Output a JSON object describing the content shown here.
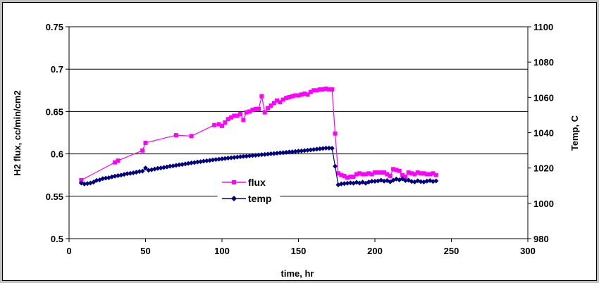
{
  "chart_data": {
    "type": "line",
    "xlabel": "time, hr",
    "ylabel_left": "H2 flux, cc/min/cm2",
    "ylabel_right": "Temp, C",
    "xlim": [
      0,
      300
    ],
    "xticks": [
      0,
      50,
      100,
      150,
      200,
      250,
      300
    ],
    "ylim_left": [
      0.5,
      0.75
    ],
    "yticks_left": [
      "0.5",
      "0.55",
      "0.6",
      "0.65",
      "0.7",
      "0.75"
    ],
    "ylim_right": [
      980,
      1100
    ],
    "yticks_right": [
      "980",
      "1000",
      "1020",
      "1040",
      "1060",
      "1080",
      "1100"
    ],
    "grid": "horizontal",
    "legend_position": "center-left",
    "series": [
      {
        "name": "flux",
        "axis": "left",
        "color": "#ff00ff",
        "marker": "square",
        "points": [
          [
            8,
            0.569
          ],
          [
            30,
            0.59
          ],
          [
            32,
            0.592
          ],
          [
            48,
            0.604
          ],
          [
            50,
            0.613
          ],
          [
            70,
            0.622
          ],
          [
            80,
            0.621
          ],
          [
            95,
            0.634
          ],
          [
            98,
            0.635
          ],
          [
            100,
            0.633
          ],
          [
            102,
            0.637
          ],
          [
            104,
            0.641
          ],
          [
            106,
            0.643
          ],
          [
            108,
            0.645
          ],
          [
            110,
            0.645
          ],
          [
            112,
            0.647
          ],
          [
            114,
            0.64
          ],
          [
            116,
            0.649
          ],
          [
            118,
            0.65
          ],
          [
            120,
            0.652
          ],
          [
            122,
            0.653
          ],
          [
            124,
            0.653
          ],
          [
            126,
            0.668
          ],
          [
            128,
            0.649
          ],
          [
            130,
            0.654
          ],
          [
            132,
            0.657
          ],
          [
            134,
            0.66
          ],
          [
            136,
            0.663
          ],
          [
            138,
            0.661
          ],
          [
            140,
            0.664
          ],
          [
            142,
            0.666
          ],
          [
            144,
            0.667
          ],
          [
            146,
            0.668
          ],
          [
            148,
            0.669
          ],
          [
            150,
            0.669
          ],
          [
            152,
            0.67
          ],
          [
            154,
            0.671
          ],
          [
            156,
            0.67
          ],
          [
            158,
            0.673
          ],
          [
            160,
            0.675
          ],
          [
            162,
            0.675
          ],
          [
            164,
            0.676
          ],
          [
            166,
            0.676
          ],
          [
            168,
            0.677
          ],
          [
            170,
            0.676
          ],
          [
            172,
            0.676
          ],
          [
            174,
            0.624
          ],
          [
            176,
            0.577
          ],
          [
            178,
            0.575
          ],
          [
            180,
            0.574
          ],
          [
            182,
            0.572
          ],
          [
            184,
            0.573
          ],
          [
            186,
            0.573
          ],
          [
            188,
            0.576
          ],
          [
            190,
            0.577
          ],
          [
            192,
            0.576
          ],
          [
            194,
            0.576
          ],
          [
            196,
            0.577
          ],
          [
            198,
            0.576
          ],
          [
            200,
            0.578
          ],
          [
            202,
            0.578
          ],
          [
            204,
            0.578
          ],
          [
            206,
            0.578
          ],
          [
            208,
            0.576
          ],
          [
            210,
            0.574
          ],
          [
            212,
            0.582
          ],
          [
            214,
            0.581
          ],
          [
            216,
            0.58
          ],
          [
            218,
            0.575
          ],
          [
            220,
            0.573
          ],
          [
            222,
            0.578
          ],
          [
            224,
            0.577
          ],
          [
            226,
            0.576
          ],
          [
            228,
            0.578
          ],
          [
            230,
            0.577
          ],
          [
            232,
            0.577
          ],
          [
            234,
            0.576
          ],
          [
            236,
            0.576
          ],
          [
            238,
            0.577
          ],
          [
            240,
            0.575
          ]
        ]
      },
      {
        "name": "temp",
        "axis": "right",
        "color": "#000080",
        "marker": "diamond",
        "points": [
          [
            8,
            1011.5
          ],
          [
            10,
            1011
          ],
          [
            12,
            1011.2
          ],
          [
            14,
            1011.5
          ],
          [
            16,
            1012
          ],
          [
            18,
            1013
          ],
          [
            20,
            1013.3
          ],
          [
            22,
            1014
          ],
          [
            24,
            1014.3
          ],
          [
            26,
            1014.5
          ],
          [
            28,
            1015
          ],
          [
            30,
            1015.4
          ],
          [
            32,
            1015.7
          ],
          [
            34,
            1016
          ],
          [
            36,
            1016.4
          ],
          [
            38,
            1016.8
          ],
          [
            40,
            1017
          ],
          [
            42,
            1017.3
          ],
          [
            44,
            1017.6
          ],
          [
            46,
            1018
          ],
          [
            48,
            1018.2
          ],
          [
            50,
            1020
          ],
          [
            52,
            1018.7
          ],
          [
            54,
            1019
          ],
          [
            56,
            1019.4
          ],
          [
            58,
            1019.8
          ],
          [
            60,
            1020
          ],
          [
            62,
            1020.3
          ],
          [
            64,
            1020.6
          ],
          [
            66,
            1021
          ],
          [
            68,
            1021.2
          ],
          [
            70,
            1021.5
          ],
          [
            72,
            1021.8
          ],
          [
            74,
            1022
          ],
          [
            76,
            1022.3
          ],
          [
            78,
            1022.6
          ],
          [
            80,
            1022.9
          ],
          [
            82,
            1023.1
          ],
          [
            84,
            1023.4
          ],
          [
            86,
            1023.6
          ],
          [
            88,
            1023.9
          ],
          [
            90,
            1024.1
          ],
          [
            92,
            1024.3
          ],
          [
            94,
            1024.6
          ],
          [
            96,
            1024.8
          ],
          [
            98,
            1025
          ],
          [
            100,
            1025.2
          ],
          [
            102,
            1025.4
          ],
          [
            104,
            1025.6
          ],
          [
            106,
            1025.8
          ],
          [
            108,
            1026
          ],
          [
            110,
            1026.2
          ],
          [
            112,
            1026.4
          ],
          [
            114,
            1026.6
          ],
          [
            116,
            1026.7
          ],
          [
            118,
            1026.9
          ],
          [
            120,
            1027.1
          ],
          [
            122,
            1027.2
          ],
          [
            124,
            1027.4
          ],
          [
            126,
            1027.6
          ],
          [
            128,
            1027.7
          ],
          [
            130,
            1027.9
          ],
          [
            132,
            1028.1
          ],
          [
            134,
            1028.2
          ],
          [
            136,
            1028.4
          ],
          [
            138,
            1028.6
          ],
          [
            140,
            1028.7
          ],
          [
            142,
            1028.9
          ],
          [
            144,
            1029.1
          ],
          [
            146,
            1029.2
          ],
          [
            148,
            1029.4
          ],
          [
            150,
            1029.6
          ],
          [
            152,
            1029.7
          ],
          [
            154,
            1029.9
          ],
          [
            156,
            1030.1
          ],
          [
            158,
            1030.3
          ],
          [
            160,
            1030.5
          ],
          [
            162,
            1030.7
          ],
          [
            164,
            1030.9
          ],
          [
            166,
            1031.1
          ],
          [
            168,
            1031.3
          ],
          [
            170,
            1031.3
          ],
          [
            172,
            1031.2
          ],
          [
            174,
            1021
          ],
          [
            176,
            1010.5
          ],
          [
            178,
            1011
          ],
          [
            180,
            1011.2
          ],
          [
            182,
            1011.4
          ],
          [
            184,
            1011.6
          ],
          [
            186,
            1011.4
          ],
          [
            188,
            1011.9
          ],
          [
            190,
            1011.5
          ],
          [
            192,
            1012
          ],
          [
            194,
            1011.4
          ],
          [
            196,
            1012.1
          ],
          [
            198,
            1012.5
          ],
          [
            200,
            1012.5
          ],
          [
            202,
            1012.7
          ],
          [
            204,
            1013.1
          ],
          [
            206,
            1012.6
          ],
          [
            208,
            1012.9
          ],
          [
            210,
            1012.2
          ],
          [
            212,
            1013.1
          ],
          [
            214,
            1013.8
          ],
          [
            216,
            1013.3
          ],
          [
            218,
            1013.9
          ],
          [
            220,
            1012.9
          ],
          [
            222,
            1013.1
          ],
          [
            224,
            1012.4
          ],
          [
            226,
            1012.1
          ],
          [
            228,
            1012.8
          ],
          [
            230,
            1012.3
          ],
          [
            232,
            1012.1
          ],
          [
            234,
            1012.6
          ],
          [
            236,
            1012.9
          ],
          [
            238,
            1012.4
          ],
          [
            240,
            1012.7
          ]
        ]
      }
    ]
  }
}
